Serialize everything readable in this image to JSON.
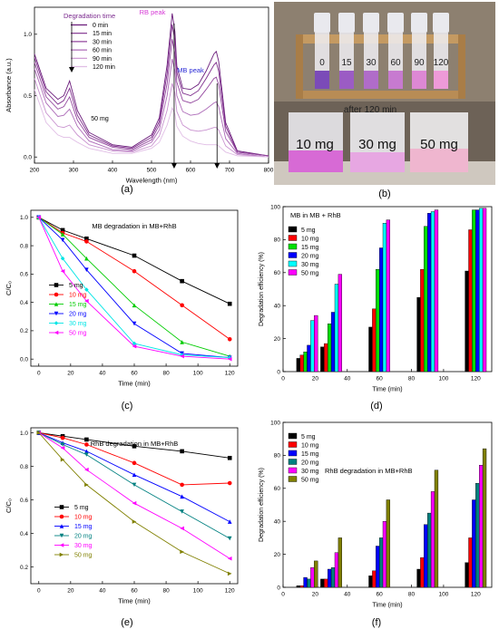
{
  "panel_labels": [
    "(a)",
    "(b)",
    "(c)",
    "(d)",
    "(e)",
    "(f)"
  ],
  "photo": {
    "tube_labels": [
      "0",
      "15",
      "30",
      "60",
      "90",
      "120"
    ],
    "caption": "after 120 min",
    "beaker_labels": [
      "10 mg",
      "30 mg",
      "50 mg"
    ]
  },
  "chart_data": [
    {
      "type": "line",
      "id": "a",
      "xlabel": "Wavelength (nm)",
      "ylabel": "Absorbance (a.u.)",
      "xlim": [
        200,
        800
      ],
      "ylim": [
        -0.05,
        1.22
      ],
      "xticks": [
        200,
        300,
        400,
        500,
        600,
        700,
        800
      ],
      "yticks": [
        0.0,
        0.5,
        1.0
      ],
      "ytick_labels": [
        "0.0",
        "0.5",
        "1.0"
      ],
      "legend_title": "Degradation time",
      "annotations": [
        "RB peak",
        "MB peak",
        "50 mg"
      ],
      "colors": [
        "#6a1b7a",
        "#7e2d8c",
        "#93479e",
        "#ad6bb8",
        "#c891cf",
        "#e0bde5"
      ],
      "series": [
        {
          "name": "0 min",
          "x": [
            200,
            230,
            260,
            275,
            290,
            310,
            340,
            400,
            450,
            500,
            520,
            540,
            553,
            560,
            565,
            580,
            600,
            620,
            640,
            660,
            666,
            672,
            690,
            720,
            800
          ],
          "y": [
            0.84,
            0.56,
            0.47,
            0.5,
            0.62,
            0.38,
            0.2,
            0.1,
            0.08,
            0.18,
            0.32,
            0.75,
            1.17,
            1.02,
            0.74,
            0.56,
            0.55,
            0.59,
            0.7,
            0.84,
            0.86,
            0.78,
            0.28,
            0.05,
            0.01
          ]
        },
        {
          "name": "15 min",
          "x": [
            200,
            230,
            260,
            275,
            290,
            310,
            340,
            400,
            450,
            500,
            520,
            540,
            553,
            560,
            565,
            580,
            600,
            620,
            640,
            660,
            666,
            672,
            690,
            720,
            800
          ],
          "y": [
            0.81,
            0.53,
            0.43,
            0.46,
            0.56,
            0.34,
            0.18,
            0.09,
            0.07,
            0.16,
            0.29,
            0.68,
            1.08,
            0.95,
            0.69,
            0.52,
            0.5,
            0.54,
            0.64,
            0.75,
            0.77,
            0.7,
            0.25,
            0.04,
            0.01
          ]
        },
        {
          "name": "30 min",
          "x": [
            200,
            230,
            260,
            275,
            290,
            310,
            340,
            400,
            450,
            500,
            520,
            540,
            553,
            560,
            565,
            580,
            600,
            620,
            640,
            660,
            666,
            672,
            690,
            720,
            800
          ],
          "y": [
            0.77,
            0.49,
            0.39,
            0.41,
            0.49,
            0.3,
            0.16,
            0.08,
            0.06,
            0.14,
            0.26,
            0.6,
            0.96,
            0.84,
            0.61,
            0.46,
            0.44,
            0.47,
            0.55,
            0.64,
            0.65,
            0.59,
            0.21,
            0.04,
            0.01
          ]
        },
        {
          "name": "60 min",
          "x": [
            200,
            230,
            260,
            275,
            290,
            310,
            340,
            400,
            450,
            500,
            520,
            540,
            553,
            560,
            565,
            580,
            600,
            620,
            640,
            660,
            666,
            672,
            690,
            720,
            800
          ],
          "y": [
            0.72,
            0.44,
            0.33,
            0.34,
            0.39,
            0.25,
            0.13,
            0.06,
            0.05,
            0.12,
            0.22,
            0.5,
            0.8,
            0.7,
            0.5,
            0.37,
            0.34,
            0.35,
            0.39,
            0.44,
            0.45,
            0.41,
            0.15,
            0.03,
            0.0
          ]
        },
        {
          "name": "90 min",
          "x": [
            200,
            230,
            260,
            275,
            290,
            310,
            340,
            400,
            450,
            500,
            520,
            540,
            553,
            560,
            565,
            580,
            600,
            620,
            640,
            660,
            666,
            672,
            690,
            720,
            800
          ],
          "y": [
            0.64,
            0.36,
            0.25,
            0.24,
            0.26,
            0.18,
            0.1,
            0.05,
            0.04,
            0.09,
            0.17,
            0.38,
            0.6,
            0.52,
            0.37,
            0.26,
            0.22,
            0.21,
            0.22,
            0.24,
            0.24,
            0.22,
            0.09,
            0.02,
            0.0
          ]
        },
        {
          "name": "120 min",
          "x": [
            200,
            230,
            260,
            275,
            290,
            310,
            340,
            400,
            450,
            500,
            520,
            540,
            553,
            560,
            565,
            580,
            600,
            620,
            640,
            660,
            666,
            672,
            690,
            720,
            800
          ],
          "y": [
            0.55,
            0.28,
            0.18,
            0.16,
            0.16,
            0.12,
            0.07,
            0.03,
            0.03,
            0.07,
            0.12,
            0.26,
            0.4,
            0.35,
            0.25,
            0.17,
            0.13,
            0.11,
            0.1,
            0.1,
            0.1,
            0.09,
            0.04,
            0.01,
            0.0
          ]
        }
      ]
    },
    {
      "type": "line",
      "id": "c",
      "title": "MB degradation in MB+RhB",
      "xlabel": "Time (min)",
      "ylabel": "C/C₀",
      "xlim": [
        -5,
        125
      ],
      "ylim": [
        -0.05,
        1.05
      ],
      "xticks": [
        0,
        20,
        40,
        60,
        80,
        100,
        120
      ],
      "yticks": [
        0.0,
        0.2,
        0.4,
        0.6,
        0.8,
        1.0
      ],
      "ytick_labels": [
        "0.0",
        "0.2",
        "0.4",
        "0.6",
        "0.8",
        "1.0"
      ],
      "x": [
        0,
        15,
        30,
        60,
        90,
        120
      ],
      "series": [
        {
          "name": "5 mg",
          "color": "#000000",
          "marker": "square",
          "values": [
            1.0,
            0.91,
            0.85,
            0.73,
            0.55,
            0.39
          ]
        },
        {
          "name": "10 mg",
          "color": "#ff0000",
          "marker": "circle",
          "values": [
            1.0,
            0.89,
            0.83,
            0.62,
            0.38,
            0.14
          ]
        },
        {
          "name": "15 mg",
          "color": "#00cc00",
          "marker": "triangle-up",
          "values": [
            1.0,
            0.88,
            0.71,
            0.38,
            0.12,
            0.02
          ]
        },
        {
          "name": "20 mg",
          "color": "#0000ff",
          "marker": "triangle-down",
          "values": [
            1.0,
            0.84,
            0.63,
            0.25,
            0.04,
            0.01
          ]
        },
        {
          "name": "30 mg",
          "color": "#00e5e5",
          "marker": "diamond",
          "values": [
            1.0,
            0.71,
            0.49,
            0.11,
            0.03,
            0.01
          ]
        },
        {
          "name": "50 mg",
          "color": "#ff00ff",
          "marker": "triangle-left",
          "values": [
            1.0,
            0.62,
            0.41,
            0.09,
            0.02,
            0.0
          ]
        }
      ]
    },
    {
      "type": "bar",
      "id": "d",
      "title": "MB in MB + RhB",
      "xlabel": "Time (min)",
      "ylabel": "Degradation efficiency (%)",
      "xlim": [
        0,
        130
      ],
      "ylim": [
        0,
        100
      ],
      "xticks": [
        0,
        20,
        40,
        60,
        80,
        100,
        120
      ],
      "yticks": [
        0,
        20,
        40,
        60,
        80,
        100
      ],
      "categories": [
        15,
        30,
        60,
        90,
        120
      ],
      "series": [
        {
          "name": "5 mg",
          "color": "#000000",
          "values": [
            8,
            15,
            27,
            45,
            61
          ]
        },
        {
          "name": "10 mg",
          "color": "#ff0000",
          "values": [
            10,
            17,
            38,
            62,
            86
          ]
        },
        {
          "name": "15 mg",
          "color": "#00e000",
          "values": [
            12,
            29,
            62,
            88,
            98
          ]
        },
        {
          "name": "20 mg",
          "color": "#0000ff",
          "values": [
            16,
            36,
            75,
            96,
            98
          ]
        },
        {
          "name": "30 mg",
          "color": "#00ffff",
          "values": [
            31,
            53,
            90,
            97,
            99
          ]
        },
        {
          "name": "50 mg",
          "color": "#ff00ff",
          "values": [
            34,
            59,
            92,
            98,
            99
          ]
        }
      ]
    },
    {
      "type": "line",
      "id": "e",
      "title": "RhB degradation in MB+RhB",
      "xlabel": "Time (min)",
      "ylabel": "C/C₀",
      "xlim": [
        -5,
        125
      ],
      "ylim": [
        0.1,
        1.03
      ],
      "xticks": [
        0,
        20,
        40,
        60,
        80,
        100,
        120
      ],
      "yticks": [
        0.2,
        0.4,
        0.6,
        0.8,
        1.0
      ],
      "ytick_labels": [
        "0.2",
        "0.4",
        "0.6",
        "0.8",
        "1.0"
      ],
      "x": [
        0,
        15,
        30,
        60,
        90,
        120
      ],
      "series": [
        {
          "name": "5 mg",
          "color": "#000000",
          "marker": "square",
          "values": [
            1.0,
            0.98,
            0.96,
            0.92,
            0.89,
            0.85
          ]
        },
        {
          "name": "10 mg",
          "color": "#ff0000",
          "marker": "circle",
          "values": [
            1.0,
            0.97,
            0.93,
            0.82,
            0.69,
            0.7
          ]
        },
        {
          "name": "15 mg",
          "color": "#0000ff",
          "marker": "triangle-up",
          "values": [
            1.0,
            0.94,
            0.89,
            0.75,
            0.62,
            0.47
          ]
        },
        {
          "name": "20 mg",
          "color": "#008080",
          "marker": "triangle-down",
          "values": [
            1.0,
            0.93,
            0.87,
            0.69,
            0.53,
            0.37
          ]
        },
        {
          "name": "30 mg",
          "color": "#ff00ff",
          "marker": "triangle-left",
          "values": [
            1.0,
            0.91,
            0.78,
            0.58,
            0.43,
            0.25
          ]
        },
        {
          "name": "50 mg",
          "color": "#808000",
          "marker": "triangle-right",
          "values": [
            1.0,
            0.84,
            0.69,
            0.47,
            0.29,
            0.16
          ]
        }
      ]
    },
    {
      "type": "bar",
      "id": "f",
      "title": "RhB degradation in MB+RhB",
      "xlabel": "Time (min)",
      "ylabel": "Degradation efficiency (%)",
      "xlim": [
        0,
        130
      ],
      "ylim": [
        0,
        100
      ],
      "xticks": [
        0,
        20,
        40,
        60,
        80,
        100,
        120
      ],
      "yticks": [
        0,
        20,
        40,
        60,
        80,
        100
      ],
      "categories": [
        15,
        30,
        60,
        90,
        120
      ],
      "series": [
        {
          "name": "5 mg",
          "color": "#000000",
          "values": [
            1,
            5,
            7,
            11,
            15
          ]
        },
        {
          "name": "10 mg",
          "color": "#ff0000",
          "values": [
            1,
            5,
            10,
            18,
            30
          ]
        },
        {
          "name": "15 mg",
          "color": "#0000ff",
          "values": [
            6,
            11,
            25,
            38,
            53
          ]
        },
        {
          "name": "20 mg",
          "color": "#008080",
          "values": [
            5,
            12,
            30,
            45,
            63
          ]
        },
        {
          "name": "30 mg",
          "color": "#ff00ff",
          "values": [
            12,
            21,
            40,
            58,
            74
          ]
        },
        {
          "name": "50 mg",
          "color": "#808000",
          "values": [
            16,
            30,
            53,
            71,
            84
          ]
        }
      ]
    }
  ]
}
